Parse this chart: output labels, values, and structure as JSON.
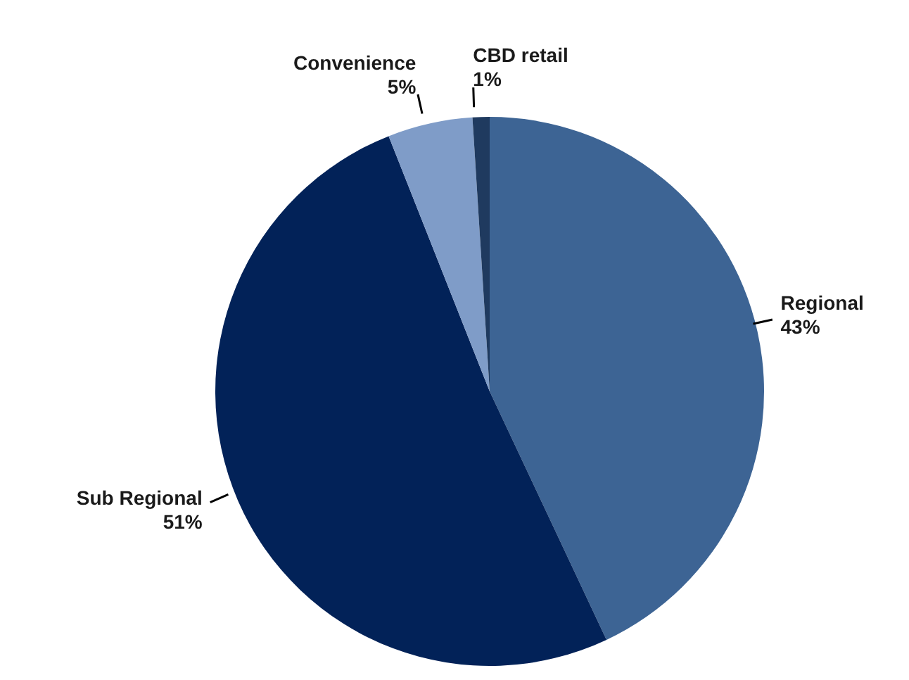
{
  "chart_data": {
    "type": "pie",
    "categories": [
      "Regional",
      "Sub Regional",
      "Convenience",
      "CBD retail"
    ],
    "values": [
      43,
      51,
      5,
      1
    ],
    "colors": [
      "#3d6494",
      "#022258",
      "#7f9cc8",
      "#1f3a5f"
    ],
    "value_labels": [
      "43%",
      "51%",
      "5%",
      "1%"
    ],
    "legend": false
  }
}
